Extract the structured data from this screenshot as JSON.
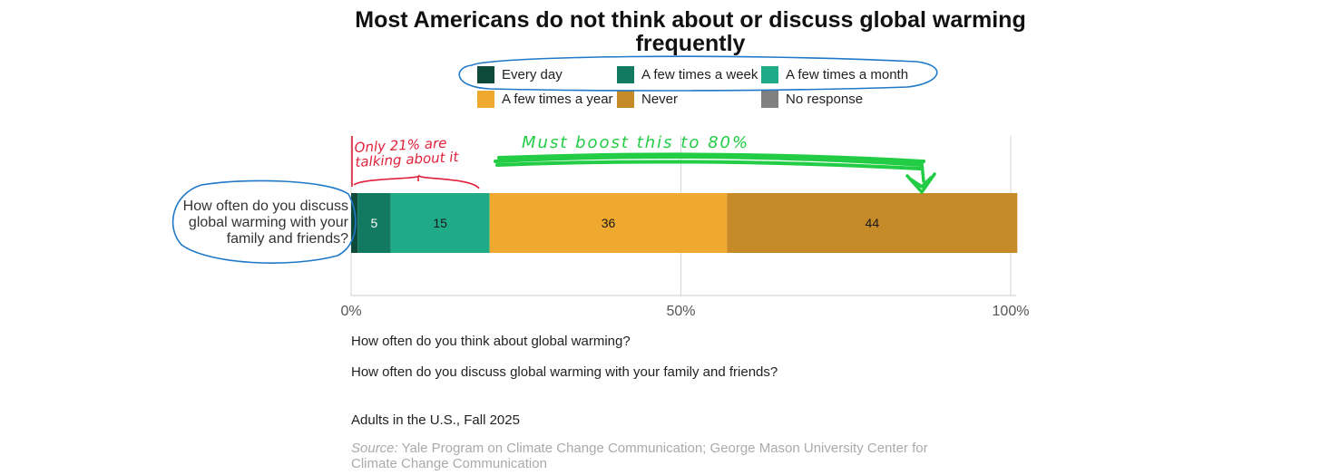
{
  "chart_data": {
    "type": "bar",
    "orientation": "horizontal",
    "stacked": true,
    "title": "Most Americans do not think about or discuss global warming frequently",
    "categories": [
      "How often do you discuss global warming with your family and friends?"
    ],
    "series": [
      {
        "name": "Every day",
        "values": [
          1
        ],
        "label": "",
        "color": "#0d4a3a"
      },
      {
        "name": "A few times a week",
        "values": [
          5
        ],
        "label": "5",
        "color": "#137a62"
      },
      {
        "name": "A few times a month",
        "values": [
          15
        ],
        "label": "15",
        "color": "#1faa88"
      },
      {
        "name": "A few times a year",
        "values": [
          36
        ],
        "label": "36",
        "color": "#efa92e"
      },
      {
        "name": "Never",
        "values": [
          44
        ],
        "label": "44",
        "color": "#c68a28"
      },
      {
        "name": "No response",
        "values": [
          0
        ],
        "label": "",
        "color": "#808080"
      }
    ],
    "xlim": [
      0,
      100
    ],
    "x_ticks": [
      {
        "value": 0,
        "label": "0%"
      },
      {
        "value": 50,
        "label": "50%"
      },
      {
        "value": 100,
        "label": "100%"
      }
    ],
    "legend_position": "top"
  },
  "questions": [
    "How often do you think about global warming?",
    "How often do you discuss global warming with your family and friends?"
  ],
  "population_note": "Adults in the U.S., Fall 2025",
  "source": {
    "prefix": "Source:",
    "text": "Yale Program on Climate Change Communication; George Mason University Center for Climate Change Communication"
  },
  "annotations": {
    "red_line1": "Only 21% are",
    "red_line2": "talking about it",
    "green": "Must boost this to 80%",
    "blue_color": "#1f78c8",
    "red_color": "#e0203a",
    "green_color": "#22cc44"
  }
}
